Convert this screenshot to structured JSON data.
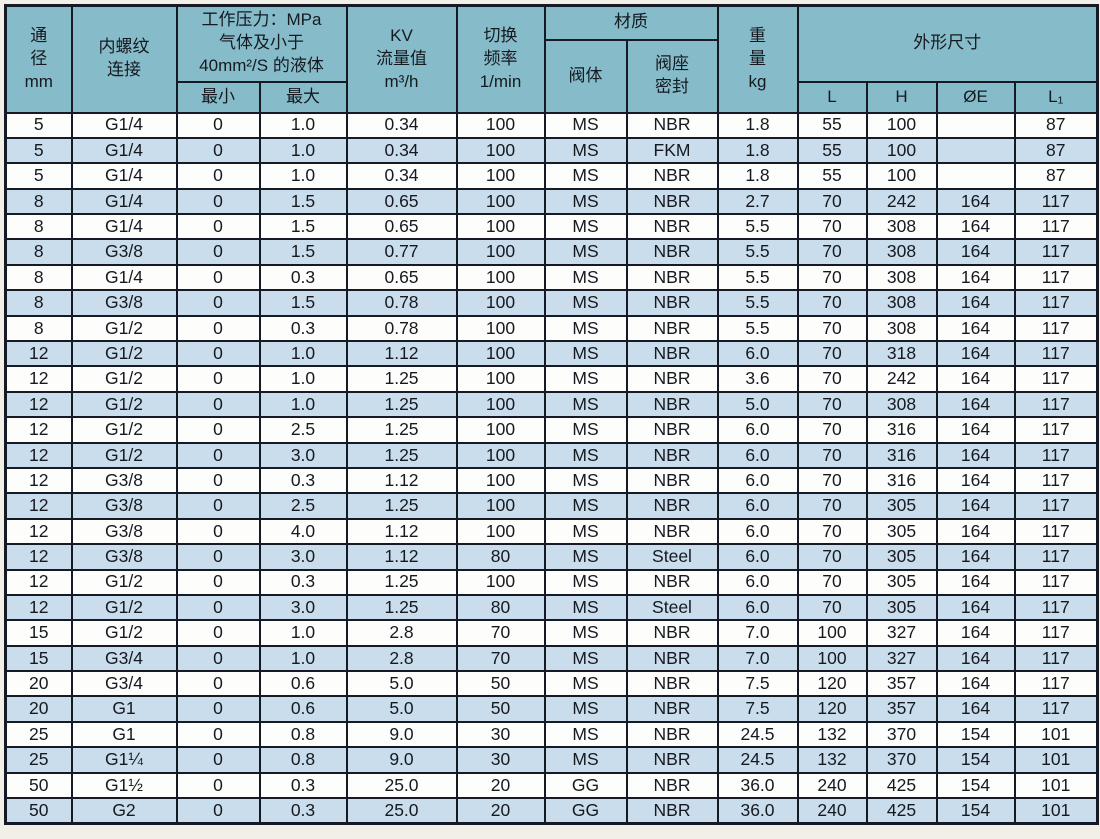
{
  "colors": {
    "page_bg": "#f2efe9",
    "header_bg": "#86bcca",
    "stripe_bg": "#c9ddec",
    "row_bg": "#fdfdfc",
    "border": "#161a24",
    "text": "#16191f"
  },
  "table": {
    "header": {
      "diameter": "通\n径\nmm",
      "thread": "内螺纹\n连接",
      "pressure_group": "工作压力：MPa\n气体及小于\n40mm²/S 的液体",
      "pressure_min": "最小",
      "pressure_max": "最大",
      "kv": "KV\n流量值\nm³/h",
      "frequency": "切换\n频率\n1/min",
      "material_group": "材质",
      "material_body": "阀体",
      "material_seal": "阀座\n密封",
      "weight": "重\n量\nkg",
      "dimensions_group": "外形尺寸",
      "dim_l": "L",
      "dim_h": "H",
      "dim_e": "ØE",
      "dim_l1": "L₁"
    },
    "rows": [
      [
        "5",
        "G1/4",
        "0",
        "1.0",
        "0.34",
        "100",
        "MS",
        "NBR",
        "1.8",
        "55",
        "100",
        "",
        "87"
      ],
      [
        "5",
        "G1/4",
        "0",
        "1.0",
        "0.34",
        "100",
        "MS",
        "FKM",
        "1.8",
        "55",
        "100",
        "",
        "87"
      ],
      [
        "5",
        "G1/4",
        "0",
        "1.0",
        "0.34",
        "100",
        "MS",
        "NBR",
        "1.8",
        "55",
        "100",
        "",
        "87"
      ],
      [
        "8",
        "G1/4",
        "0",
        "1.5",
        "0.65",
        "100",
        "MS",
        "NBR",
        "2.7",
        "70",
        "242",
        "164",
        "117"
      ],
      [
        "8",
        "G1/4",
        "0",
        "1.5",
        "0.65",
        "100",
        "MS",
        "NBR",
        "5.5",
        "70",
        "308",
        "164",
        "117"
      ],
      [
        "8",
        "G3/8",
        "0",
        "1.5",
        "0.77",
        "100",
        "MS",
        "NBR",
        "5.5",
        "70",
        "308",
        "164",
        "117"
      ],
      [
        "8",
        "G1/4",
        "0",
        "0.3",
        "0.65",
        "100",
        "MS",
        "NBR",
        "5.5",
        "70",
        "308",
        "164",
        "117"
      ],
      [
        "8",
        "G3/8",
        "0",
        "1.5",
        "0.78",
        "100",
        "MS",
        "NBR",
        "5.5",
        "70",
        "308",
        "164",
        "117"
      ],
      [
        "8",
        "G1/2",
        "0",
        "0.3",
        "0.78",
        "100",
        "MS",
        "NBR",
        "5.5",
        "70",
        "308",
        "164",
        "117"
      ],
      [
        "12",
        "G1/2",
        "0",
        "1.0",
        "1.12",
        "100",
        "MS",
        "NBR",
        "6.0",
        "70",
        "318",
        "164",
        "117"
      ],
      [
        "12",
        "G1/2",
        "0",
        "1.0",
        "1.25",
        "100",
        "MS",
        "NBR",
        "3.6",
        "70",
        "242",
        "164",
        "117"
      ],
      [
        "12",
        "G1/2",
        "0",
        "1.0",
        "1.25",
        "100",
        "MS",
        "NBR",
        "5.0",
        "70",
        "308",
        "164",
        "117"
      ],
      [
        "12",
        "G1/2",
        "0",
        "2.5",
        "1.25",
        "100",
        "MS",
        "NBR",
        "6.0",
        "70",
        "316",
        "164",
        "117"
      ],
      [
        "12",
        "G1/2",
        "0",
        "3.0",
        "1.25",
        "100",
        "MS",
        "NBR",
        "6.0",
        "70",
        "316",
        "164",
        "117"
      ],
      [
        "12",
        "G3/8",
        "0",
        "0.3",
        "1.12",
        "100",
        "MS",
        "NBR",
        "6.0",
        "70",
        "316",
        "164",
        "117"
      ],
      [
        "12",
        "G3/8",
        "0",
        "2.5",
        "1.25",
        "100",
        "MS",
        "NBR",
        "6.0",
        "70",
        "305",
        "164",
        "117"
      ],
      [
        "12",
        "G3/8",
        "0",
        "4.0",
        "1.12",
        "100",
        "MS",
        "NBR",
        "6.0",
        "70",
        "305",
        "164",
        "117"
      ],
      [
        "12",
        "G3/8",
        "0",
        "3.0",
        "1.12",
        "80",
        "MS",
        "Steel",
        "6.0",
        "70",
        "305",
        "164",
        "117"
      ],
      [
        "12",
        "G1/2",
        "0",
        "0.3",
        "1.25",
        "100",
        "MS",
        "NBR",
        "6.0",
        "70",
        "305",
        "164",
        "117"
      ],
      [
        "12",
        "G1/2",
        "0",
        "3.0",
        "1.25",
        "80",
        "MS",
        "Steel",
        "6.0",
        "70",
        "305",
        "164",
        "117"
      ],
      [
        "15",
        "G1/2",
        "0",
        "1.0",
        "2.8",
        "70",
        "MS",
        "NBR",
        "7.0",
        "100",
        "327",
        "164",
        "117"
      ],
      [
        "15",
        "G3/4",
        "0",
        "1.0",
        "2.8",
        "70",
        "MS",
        "NBR",
        "7.0",
        "100",
        "327",
        "164",
        "117"
      ],
      [
        "20",
        "G3/4",
        "0",
        "0.6",
        "5.0",
        "50",
        "MS",
        "NBR",
        "7.5",
        "120",
        "357",
        "164",
        "117"
      ],
      [
        "20",
        "G1",
        "0",
        "0.6",
        "5.0",
        "50",
        "MS",
        "NBR",
        "7.5",
        "120",
        "357",
        "164",
        "117"
      ],
      [
        "25",
        "G1",
        "0",
        "0.8",
        "9.0",
        "30",
        "MS",
        "NBR",
        "24.5",
        "132",
        "370",
        "154",
        "101"
      ],
      [
        "25",
        "G1¼",
        "0",
        "0.8",
        "9.0",
        "30",
        "MS",
        "NBR",
        "24.5",
        "132",
        "370",
        "154",
        "101"
      ],
      [
        "50",
        "G1½",
        "0",
        "0.3",
        "25.0",
        "20",
        "GG",
        "NBR",
        "36.0",
        "240",
        "425",
        "154",
        "101"
      ],
      [
        "50",
        "G2",
        "0",
        "0.3",
        "25.0",
        "20",
        "GG",
        "NBR",
        "36.0",
        "240",
        "425",
        "154",
        "101"
      ]
    ]
  }
}
